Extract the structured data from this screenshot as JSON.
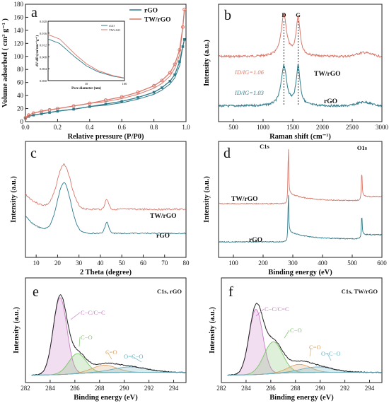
{
  "chart_data": [
    {
      "panel": "a",
      "type": "line",
      "xlabel": "Relative pressure (P/P0)",
      "ylabel": "Volume adsorbed ( cm³ g⁻¹ )",
      "xlim": [
        0,
        1.0
      ],
      "ylim": [
        0,
        180
      ],
      "xticks": [
        "0.0",
        "0.2",
        "0.4",
        "0.6",
        "0.8",
        "1.0"
      ],
      "yticks": [
        "0",
        "20",
        "40",
        "60",
        "80",
        "100",
        "120",
        "140",
        "160",
        "180"
      ],
      "legend": "top-right",
      "series": [
        {
          "name": "rGO",
          "color": "#2f7a8a",
          "x": [
            0,
            0.02,
            0.05,
            0.1,
            0.15,
            0.2,
            0.3,
            0.4,
            0.5,
            0.6,
            0.7,
            0.8,
            0.85,
            0.9,
            0.93,
            0.96,
            0.98,
            0.99
          ],
          "y": [
            5,
            8,
            10,
            12,
            14,
            16,
            19,
            23,
            27,
            31,
            37,
            45,
            52,
            62,
            72,
            92,
            115,
            126
          ]
        },
        {
          "name": "TW/rGO",
          "color": "#d9786a",
          "x": [
            0,
            0.02,
            0.05,
            0.1,
            0.15,
            0.2,
            0.3,
            0.4,
            0.5,
            0.6,
            0.7,
            0.8,
            0.85,
            0.9,
            0.93,
            0.96,
            0.98,
            0.99
          ],
          "y": [
            6,
            10,
            13,
            16,
            18,
            20,
            24,
            28,
            33,
            38,
            45,
            55,
            63,
            75,
            88,
            110,
            145,
            172
          ]
        }
      ],
      "inset": {
        "xlabel": "Pore diameter (nm)",
        "ylabel": "dV/dD (cm³nm⁻¹g⁻¹)",
        "ylim": [
          0,
          0.02
        ],
        "yticks": [
          "0.000",
          "0.004",
          "0.008",
          "0.012",
          "0.016",
          "0.020"
        ],
        "xticks": [
          "10",
          "100"
        ],
        "series": [
          {
            "name": "rGO",
            "color": "#2f7a8a",
            "x": [
              1,
              2,
              3,
              5,
              10,
              20,
              50,
              100
            ],
            "y": [
              0.014,
              0.0125,
              0.0105,
              0.008,
              0.005,
              0.003,
              0.0015,
              0.0008
            ]
          },
          {
            "name": "TW/rGO",
            "color": "#d9786a",
            "x": [
              1,
              2,
              3,
              5,
              10,
              20,
              50,
              100
            ],
            "y": [
              0.0155,
              0.014,
              0.0118,
              0.009,
              0.0057,
              0.0034,
              0.0017,
              0.0009
            ]
          }
        ]
      }
    },
    {
      "panel": "b",
      "type": "line",
      "xlabel": "Raman shift (cm⁻¹)",
      "ylabel": "Intensity (a.u.)",
      "xlim": [
        250,
        3000
      ],
      "xticks": [
        "500",
        "1000",
        "1500",
        "2000",
        "2500",
        "3000"
      ],
      "peaks": [
        "D",
        "G"
      ],
      "annotations": [
        "ID/IG=1.06",
        "ID/IG=1.03"
      ],
      "series": [
        {
          "name": "TW/rGO",
          "color": "#d9786a"
        },
        {
          "name": "rGO",
          "color": "#2f7a8a"
        }
      ]
    },
    {
      "panel": "c",
      "type": "line",
      "xlabel": "2 Theta (degree)",
      "ylabel": "Intensity (a.u.)",
      "xlim": [
        5,
        80
      ],
      "xticks": [
        "10",
        "20",
        "30",
        "40",
        "50",
        "60",
        "70",
        "80"
      ],
      "series": [
        {
          "name": "TW/rGO",
          "color": "#d9786a"
        },
        {
          "name": "rGO",
          "color": "#2f7a8a"
        }
      ]
    },
    {
      "panel": "d",
      "type": "line",
      "xlabel": "Binding energy (eV)",
      "ylabel": "Intensity (a.u.)",
      "xlim": [
        50,
        600
      ],
      "xticks": [
        "100",
        "200",
        "300",
        "400",
        "500",
        "600"
      ],
      "peaks": [
        "C1s",
        "O1s"
      ],
      "series": [
        {
          "name": "TW/rGO",
          "color": "#d9786a"
        },
        {
          "name": "rGO",
          "color": "#2f7a8a"
        }
      ]
    },
    {
      "panel": "e",
      "type": "area",
      "title": "C1s, rGO",
      "xlabel": "Binding energy (eV)",
      "ylabel": "Intensity (a.u.)",
      "xlim": [
        282,
        295
      ],
      "xticks": [
        "282",
        "284",
        "286",
        "288",
        "290",
        "292",
        "294"
      ],
      "components": [
        {
          "name": "C−C/C=C",
          "center": 284.8,
          "height": 0.85,
          "width": 0.55,
          "color": "#c77cc4"
        },
        {
          "name": "C−O",
          "center": 286.2,
          "height": 0.22,
          "width": 0.7,
          "color": "#7ec46a"
        },
        {
          "name": "C=O",
          "center": 288.4,
          "height": 0.08,
          "width": 1.0,
          "color": "#d9a46a"
        },
        {
          "name": "O=C−O",
          "center": 290.5,
          "height": 0.06,
          "width": 1.4,
          "color": "#6ab0c4"
        }
      ]
    },
    {
      "panel": "f",
      "type": "area",
      "title": "C1s, TW/rGO",
      "xlabel": "Binding energy (eV)",
      "ylabel": "Intensity (a.u.)",
      "xlim": [
        282,
        295
      ],
      "xticks": [
        "282",
        "284",
        "286",
        "288",
        "290",
        "292",
        "294"
      ],
      "components": [
        {
          "name": "C−C/C=C",
          "center": 284.8,
          "height": 0.72,
          "width": 0.55,
          "color": "#c77cc4"
        },
        {
          "name": "C−O",
          "center": 286.2,
          "height": 0.35,
          "width": 0.75,
          "color": "#7ec46a"
        },
        {
          "name": "C=O",
          "center": 288.3,
          "height": 0.09,
          "width": 0.9,
          "color": "#d9a46a"
        },
        {
          "name": "O=C−O",
          "center": 289.8,
          "height": 0.06,
          "width": 1.3,
          "color": "#6ab0c4"
        }
      ]
    }
  ],
  "labels": {
    "a": "a",
    "b": "b",
    "c": "c",
    "d": "d",
    "e": "e",
    "f": "f"
  }
}
